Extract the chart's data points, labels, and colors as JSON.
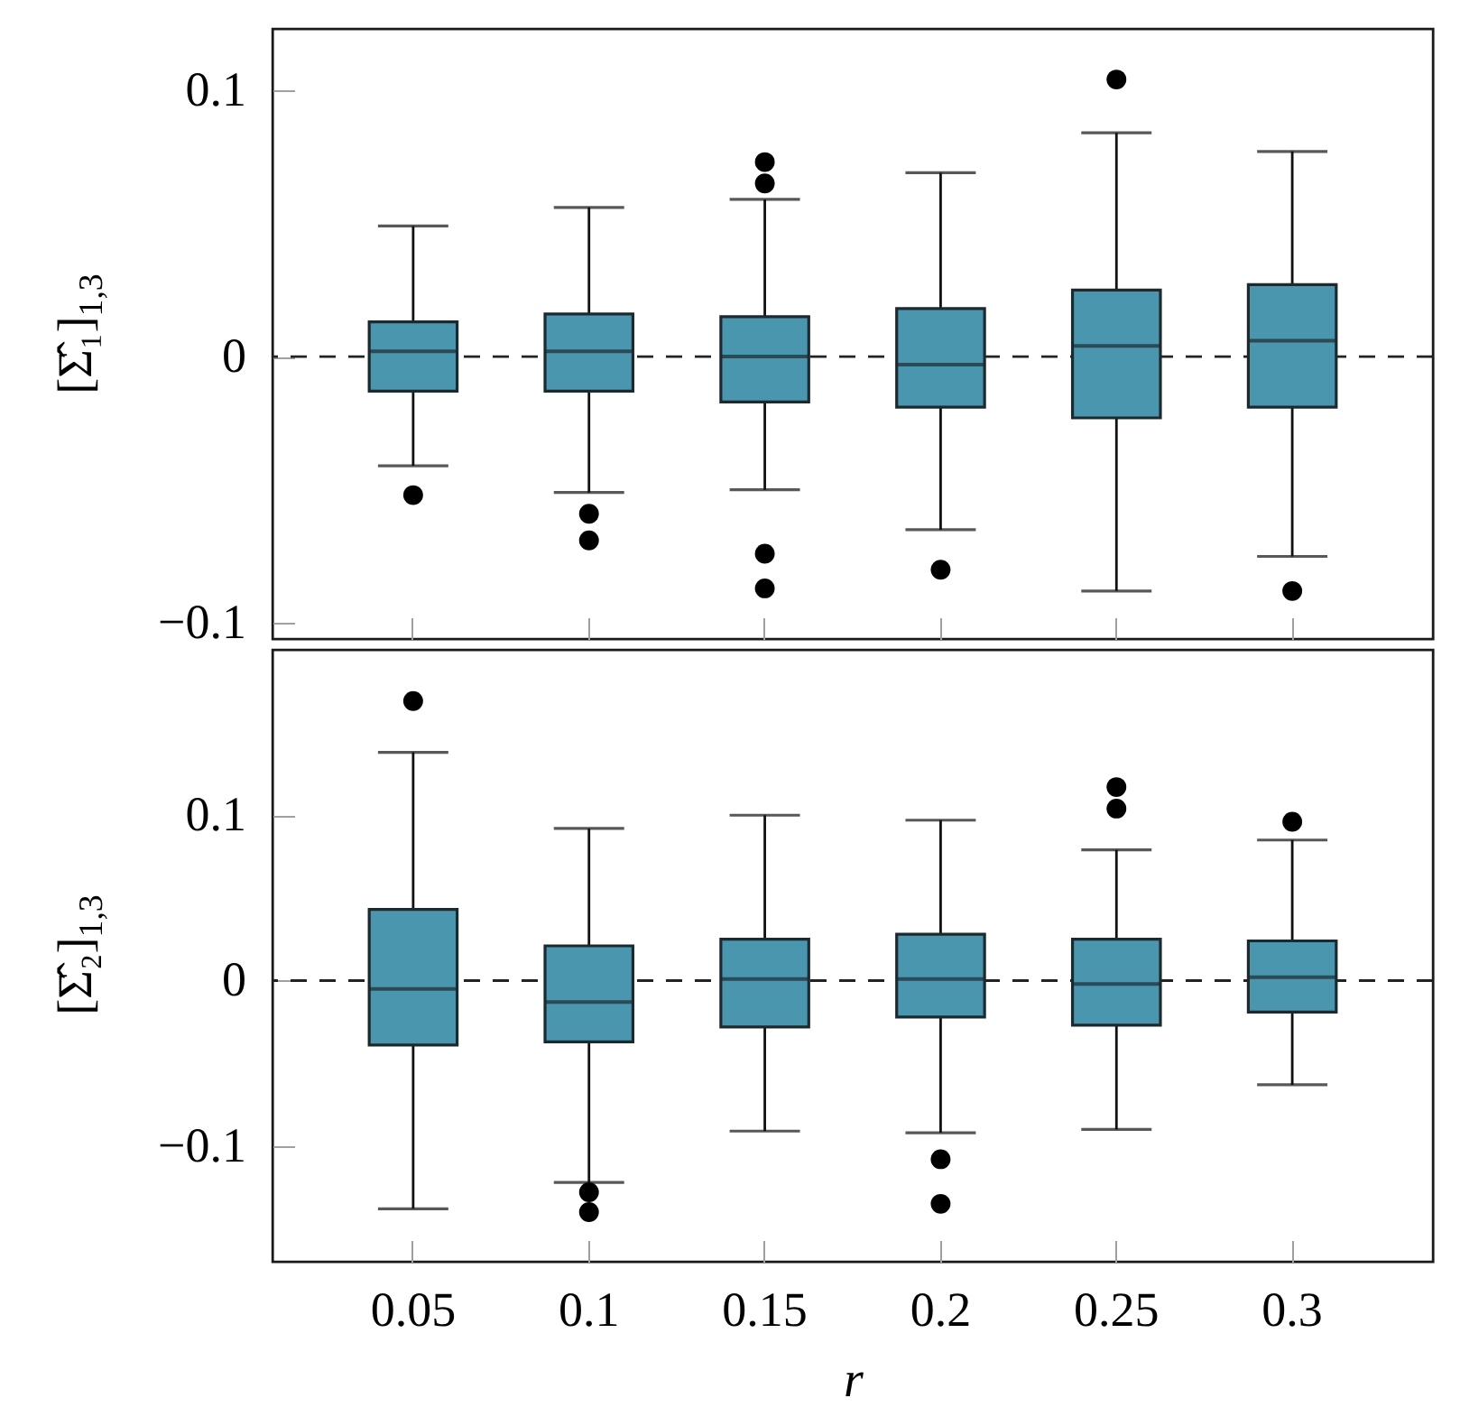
{
  "chart_data": [
    {
      "type": "box",
      "categories": [
        "0.05",
        "0.1",
        "0.15",
        "0.2",
        "0.25",
        "0.3"
      ],
      "color": "#4b96af",
      "marker": "circle",
      "ylabel": "[Σ̂₁]$_{1,3}$",
      "ylim": [
        -0.106,
        0.123
      ],
      "yticks": [
        -0.1,
        0,
        0.1
      ],
      "tick_labels": "y",
      "ref_lines": [
        {
          "axis": "y",
          "value": 0,
          "line_style": "dashed"
        }
      ],
      "boxes": [
        {
          "low": -0.041,
          "q1": -0.013,
          "median": 0.002,
          "q3": 0.013,
          "high": 0.049,
          "outliers": [
            -0.052
          ]
        },
        {
          "low": -0.051,
          "q1": -0.013,
          "median": 0.002,
          "q3": 0.016,
          "high": 0.056,
          "outliers": [
            -0.059,
            -0.069
          ]
        },
        {
          "low": -0.05,
          "q1": -0.017,
          "median": 0,
          "q3": 0.015,
          "high": 0.059,
          "outliers": [
            0.073,
            0.065,
            -0.074,
            -0.087
          ]
        },
        {
          "low": -0.065,
          "q1": -0.019,
          "median": -0.003,
          "q3": 0.018,
          "high": 0.069,
          "outliers": [
            -0.08
          ]
        },
        {
          "low": -0.088,
          "q1": -0.023,
          "median": 0.004,
          "q3": 0.025,
          "high": 0.084,
          "outliers": [
            0.104
          ]
        },
        {
          "low": -0.075,
          "q1": -0.019,
          "median": 0.006,
          "q3": 0.027,
          "high": 0.077,
          "outliers": [
            -0.088
          ]
        }
      ]
    },
    {
      "type": "box",
      "categories": [
        "0.05",
        "0.1",
        "0.15",
        "0.2",
        "0.25",
        "0.3"
      ],
      "color": "#4b96af",
      "marker": "circle",
      "xlabel": "r",
      "ylabel": "[Σ̂₂]$_{1,3}$",
      "ylim": [
        -0.17,
        0.2
      ],
      "yticks": [
        -0.1,
        0,
        0.1
      ],
      "ref_lines": [
        {
          "axis": "y",
          "value": 0,
          "line_style": "dashed"
        }
      ],
      "boxes": [
        {
          "low": -0.138,
          "q1": -0.039,
          "median": -0.005,
          "q3": 0.043,
          "high": 0.138,
          "outliers": [
            0.169
          ]
        },
        {
          "low": -0.122,
          "q1": -0.037,
          "median": -0.013,
          "q3": 0.021,
          "high": 0.092,
          "outliers": [
            -0.128,
            -0.14
          ]
        },
        {
          "low": -0.091,
          "q1": -0.028,
          "median": 0.001,
          "q3": 0.025,
          "high": 0.1
        },
        {
          "low": -0.092,
          "q1": -0.022,
          "median": 0.001,
          "q3": 0.028,
          "high": 0.097,
          "outliers": [
            -0.108,
            -0.135
          ]
        },
        {
          "low": -0.09,
          "q1": -0.027,
          "median": -0.002,
          "q3": 0.025,
          "high": 0.079,
          "outliers": [
            0.117,
            0.104
          ]
        },
        {
          "low": -0.063,
          "q1": -0.019,
          "median": 0.002,
          "q3": 0.024,
          "high": 0.085,
          "outliers": [
            0.096
          ]
        }
      ]
    }
  ]
}
